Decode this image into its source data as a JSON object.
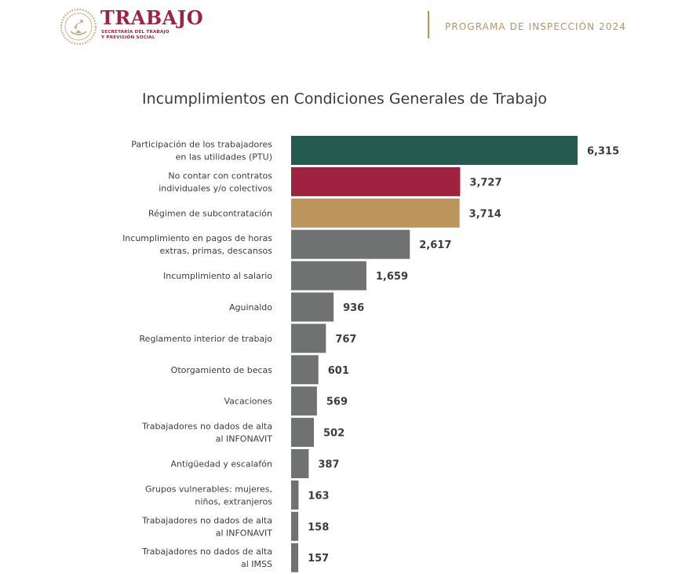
{
  "header": {
    "logo_word": "TRABAJO",
    "logo_sub_line1": "SECRETARÍA DEL TRABAJO",
    "logo_sub_line2": "Y PREVISIÓN SOCIAL",
    "program_title": "PROGRAMA DE INSPECCIÓN 2024"
  },
  "colors": {
    "brand_red": "#9f2241",
    "brand_gold": "#bc955c",
    "brand_green": "#235b4e",
    "bar_gray": "#6f7271",
    "text_dark": "#3c3c3c"
  },
  "chart_data": {
    "type": "bar",
    "orientation": "horizontal",
    "title": "Incumplimientos en Condiciones Generales de Trabajo",
    "xlabel": "",
    "ylabel": "",
    "xlim": [
      0,
      6315
    ],
    "grid": false,
    "legend": "none",
    "categories": [
      [
        "Participación de los trabajadores",
        "en las utilidades (PTU)"
      ],
      [
        "No contar con contratos",
        "individuales y/o colectivos"
      ],
      [
        "Régimen de subcontratación"
      ],
      [
        "Incumplimiento en pagos de horas",
        "extras, primas, descansos"
      ],
      [
        "Incumplimiento al salario"
      ],
      [
        "Aguinaldo"
      ],
      [
        "Reglamento interior de trabajo"
      ],
      [
        "Otorgamiento de becas"
      ],
      [
        "Vacaciones"
      ],
      [
        "Trabajadores no dados de alta",
        "al INFONAVIT"
      ],
      [
        "Antigüedad y escalafón"
      ],
      [
        "Grupos vulnerables: mujeres,",
        "niños, extranjeros"
      ],
      [
        "Trabajadores no dados de alta",
        "al INFONAVIT"
      ],
      [
        "Trabajadores no dados de alta",
        "al IMSS"
      ]
    ],
    "values": [
      6315,
      3727,
      3714,
      2617,
      1659,
      936,
      767,
      601,
      569,
      502,
      387,
      163,
      158,
      157
    ],
    "value_labels": [
      "6,315",
      "3,727",
      "3,714",
      "2,617",
      "1,659",
      "936",
      "767",
      "601",
      "569",
      "502",
      "387",
      "163",
      "158",
      "157"
    ],
    "bar_colors": [
      "#235b4e",
      "#9f2241",
      "#bc955c",
      "#6f7271",
      "#6f7271",
      "#6f7271",
      "#6f7271",
      "#6f7271",
      "#6f7271",
      "#6f7271",
      "#6f7271",
      "#6f7271",
      "#6f7271",
      "#6f7271"
    ]
  }
}
